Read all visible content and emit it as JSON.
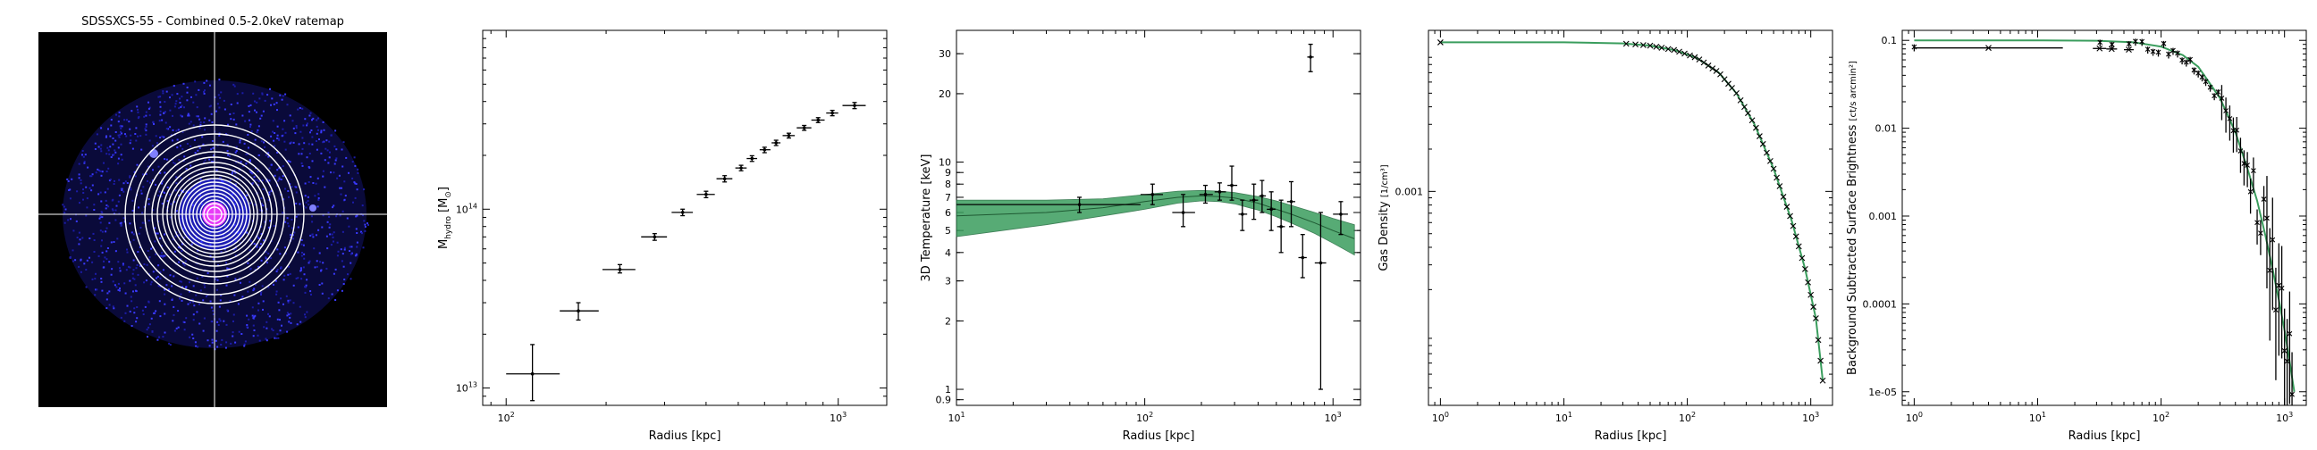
{
  "chart_data": [
    {
      "type": "image",
      "title": "SDSSXCS-55 - Combined 0.5-2.0keV ratemap"
    },
    {
      "type": "scatter",
      "xlabel": "Radius [kpc]",
      "ylabel": "M_hydro [M_⊙]",
      "ylabel_main": "M",
      "ylabel_sub": "hydro",
      "ylabel_tail": " [M",
      "ylabel_sun": "⊙",
      "ylabel_end": "]",
      "xscale": "log",
      "yscale": "log",
      "xlim": [
        85,
        1400
      ],
      "ylim": [
        8000000000000.0,
        1000000000000000.0
      ],
      "xticks": [
        {
          "v": 100,
          "label": "10",
          "sup": "2"
        },
        {
          "v": 1000,
          "label": "10",
          "sup": "3"
        }
      ],
      "yticks": [
        {
          "v": 10000000000000.0,
          "label": "10",
          "sup": "13"
        },
        {
          "v": 100000000000000.0,
          "label": "10",
          "sup": "14"
        }
      ],
      "points": [
        {
          "x": 120,
          "y": 12000000000000.0,
          "xerr": [
            100,
            145
          ],
          "yerr": [
            8500000000000.0,
            17500000000000.0
          ]
        },
        {
          "x": 165,
          "y": 27000000000000.0,
          "xerr": [
            145,
            190
          ],
          "yerr": [
            24000000000000.0,
            30000000000000.0
          ]
        },
        {
          "x": 220,
          "y": 46000000000000.0,
          "xerr": [
            195,
            245
          ],
          "yerr": [
            44000000000000.0,
            49000000000000.0
          ]
        },
        {
          "x": 280,
          "y": 70000000000000.0,
          "xerr": [
            255,
            305
          ],
          "yerr": [
            67000000000000.0,
            73000000000000.0
          ]
        },
        {
          "x": 340,
          "y": 96000000000000.0,
          "xerr": [
            315,
            365
          ],
          "yerr": [
            92000000000000.0,
            100000000000000.0
          ]
        },
        {
          "x": 400,
          "y": 121000000000000.0,
          "xerr": [
            375,
            425
          ],
          "yerr": [
            116000000000000.0,
            126000000000000.0
          ]
        },
        {
          "x": 455,
          "y": 148000000000000.0,
          "xerr": [
            430,
            480
          ],
          "yerr": [
            142000000000000.0,
            154000000000000.0
          ]
        },
        {
          "x": 510,
          "y": 170000000000000.0,
          "xerr": [
            490,
            530
          ],
          "yerr": [
            164000000000000.0,
            176000000000000.0
          ]
        },
        {
          "x": 550,
          "y": 192000000000000.0,
          "xerr": [
            530,
            570
          ],
          "yerr": [
            185000000000000.0,
            199000000000000.0
          ]
        },
        {
          "x": 600,
          "y": 215000000000000.0,
          "xerr": [
            580,
            625
          ],
          "yerr": [
            207000000000000.0,
            222000000000000.0
          ]
        },
        {
          "x": 650,
          "y": 235000000000000.0,
          "xerr": [
            630,
            670
          ],
          "yerr": [
            227000000000000.0,
            243000000000000.0
          ]
        },
        {
          "x": 710,
          "y": 258000000000000.0,
          "xerr": [
            680,
            740
          ],
          "yerr": [
            250000000000000.0,
            266000000000000.0
          ]
        },
        {
          "x": 790,
          "y": 285000000000000.0,
          "xerr": [
            750,
            830
          ],
          "yerr": [
            276000000000000.0,
            294000000000000.0
          ]
        },
        {
          "x": 870,
          "y": 315000000000000.0,
          "xerr": [
            830,
            910
          ],
          "yerr": [
            305000000000000.0,
            325000000000000.0
          ]
        },
        {
          "x": 960,
          "y": 345000000000000.0,
          "xerr": [
            920,
            1000
          ],
          "yerr": [
            333000000000000.0,
            357000000000000.0
          ]
        },
        {
          "x": 1120,
          "y": 380000000000000.0,
          "xerr": [
            1030,
            1210
          ],
          "yerr": [
            365000000000000.0,
            395000000000000.0
          ]
        }
      ]
    },
    {
      "type": "scatter",
      "xlabel": "Radius [kpc]",
      "ylabel": "3D Temperature [keV]",
      "xscale": "log",
      "yscale": "log",
      "xlim": [
        10,
        1400
      ],
      "ylim": [
        0.85,
        38
      ],
      "xticks": [
        {
          "v": 10,
          "label": "10",
          "sup": "1"
        },
        {
          "v": 100,
          "label": "10",
          "sup": "2"
        },
        {
          "v": 1000,
          "label": "10",
          "sup": "3"
        }
      ],
      "yticks": [
        {
          "v": 0.9,
          "label": "0.9"
        },
        {
          "v": 1,
          "label": "1"
        },
        {
          "v": 2,
          "label": "2"
        },
        {
          "v": 3,
          "label": "3"
        },
        {
          "v": 4,
          "label": "4"
        },
        {
          "v": 5,
          "label": "5"
        },
        {
          "v": 6,
          "label": "6"
        },
        {
          "v": 7,
          "label": "7"
        },
        {
          "v": 8,
          "label": "8"
        },
        {
          "v": 9,
          "label": "9"
        },
        {
          "v": 10,
          "label": "10"
        },
        {
          "v": 20,
          "label": "20"
        },
        {
          "v": 30,
          "label": "30"
        }
      ],
      "band_color": "#3a9d5d",
      "model_x": [
        10,
        30,
        60,
        100,
        150,
        200,
        250,
        300,
        400,
        500,
        600,
        800,
        1000,
        1300
      ],
      "model_mid": [
        5.8,
        6.0,
        6.3,
        6.7,
        7.0,
        7.1,
        7.05,
        6.95,
        6.6,
        6.2,
        5.9,
        5.4,
        5.0,
        4.6
      ],
      "model_lo": [
        4.7,
        5.3,
        5.8,
        6.2,
        6.6,
        6.75,
        6.7,
        6.55,
        6.15,
        5.75,
        5.4,
        4.85,
        4.4,
        3.9
      ],
      "model_hi": [
        6.8,
        6.8,
        6.9,
        7.2,
        7.45,
        7.5,
        7.45,
        7.35,
        7.05,
        6.75,
        6.45,
        6.0,
        5.65,
        5.3
      ],
      "points": [
        {
          "x": 45,
          "y": 6.5,
          "xerr": [
            10,
            95
          ],
          "yerr": [
            6.0,
            7.0
          ]
        },
        {
          "x": 110,
          "y": 7.2,
          "xerr": [
            95,
            125
          ],
          "yerr": [
            6.5,
            8.0
          ]
        },
        {
          "x": 160,
          "y": 6.0,
          "xerr": [
            140,
            185
          ],
          "yerr": [
            5.2,
            7.2
          ]
        },
        {
          "x": 210,
          "y": 7.2,
          "xerr": [
            195,
            230
          ],
          "yerr": [
            6.6,
            7.9
          ]
        },
        {
          "x": 250,
          "y": 7.4,
          "xerr": [
            235,
            270
          ],
          "yerr": [
            6.8,
            8.1
          ]
        },
        {
          "x": 290,
          "y": 7.9,
          "xerr": [
            275,
            310
          ],
          "yerr": [
            6.8,
            9.6
          ]
        },
        {
          "x": 330,
          "y": 5.9,
          "xerr": [
            315,
            350
          ],
          "yerr": [
            5.0,
            6.8
          ]
        },
        {
          "x": 380,
          "y": 6.8,
          "xerr": [
            360,
            400
          ],
          "yerr": [
            5.6,
            8.0
          ]
        },
        {
          "x": 420,
          "y": 7.1,
          "xerr": [
            405,
            440
          ],
          "yerr": [
            6.0,
            8.3
          ]
        },
        {
          "x": 470,
          "y": 6.2,
          "xerr": [
            445,
            495
          ],
          "yerr": [
            5.0,
            7.4
          ]
        },
        {
          "x": 530,
          "y": 5.2,
          "xerr": [
            505,
            555
          ],
          "yerr": [
            4.0,
            6.8
          ]
        },
        {
          "x": 600,
          "y": 6.7,
          "xerr": [
            570,
            630
          ],
          "yerr": [
            5.2,
            8.2
          ]
        },
        {
          "x": 690,
          "y": 3.8,
          "xerr": [
            655,
            725
          ],
          "yerr": [
            3.1,
            4.8
          ]
        },
        {
          "x": 760,
          "y": 29,
          "xerr": [
            730,
            790
          ],
          "yerr": [
            25,
            33
          ]
        },
        {
          "x": 860,
          "y": 3.6,
          "xerr": [
            800,
            920
          ],
          "yerr": [
            1.0,
            6.0
          ]
        },
        {
          "x": 1100,
          "y": 5.9,
          "xerr": [
            1000,
            1200
          ],
          "yerr": [
            4.8,
            6.7
          ]
        }
      ]
    },
    {
      "type": "line",
      "xlabel": "Radius [kpc]",
      "ylabel": "Gas Density [1/cm³]",
      "ylabel_main": "Gas Density ",
      "frac_num": "1",
      "frac_den": "cm³",
      "xscale": "log",
      "yscale": "log",
      "xlim": [
        0.8,
        1500
      ],
      "ylim": [
        3e-05,
        0.014
      ],
      "xticks": [
        {
          "v": 1,
          "label": "10",
          "sup": "0"
        },
        {
          "v": 10,
          "label": "10",
          "sup": "1"
        },
        {
          "v": 100,
          "label": "10",
          "sup": "2"
        },
        {
          "v": 1000,
          "label": "10",
          "sup": "3"
        }
      ],
      "yticks": [
        {
          "v": 0.001,
          "label": "0.001"
        }
      ],
      "line_color": "#3a9d5d",
      "model_x": [
        1,
        10,
        30,
        50,
        80,
        120,
        180,
        250,
        350,
        500,
        700,
        900,
        1100,
        1250
      ],
      "model_y": [
        0.0115,
        0.0115,
        0.0113,
        0.0109,
        0.0101,
        0.0089,
        0.007,
        0.005,
        0.003,
        0.00145,
        0.00062,
        0.00028,
        0.000125,
        4.5e-05
      ],
      "marker_x": [
        1,
        32,
        38,
        44,
        50,
        56,
        62,
        70,
        78,
        86,
        95,
        105,
        115,
        125,
        136,
        148,
        160,
        172,
        185,
        200,
        215,
        230,
        250,
        270,
        290,
        310,
        335,
        360,
        385,
        410,
        440,
        470,
        500,
        530,
        560,
        600,
        640,
        680,
        720,
        760,
        800,
        850,
        900,
        950,
        1000,
        1050,
        1100,
        1150,
        1200,
        1250
      ]
    },
    {
      "type": "scatter",
      "xlabel": "Radius [kpc]",
      "ylabel": "Background Subtracted Surface Brightness [ct/(s arcmin²)]",
      "ylabel_main": "Background Subtracted Surface Brightness ",
      "frac_num": "ct",
      "frac_den": "s arcmin²",
      "xscale": "log",
      "yscale": "log",
      "xlim": [
        0.8,
        1500
      ],
      "ylim": [
        7e-06,
        0.13
      ],
      "xticks": [
        {
          "v": 1,
          "label": "10",
          "sup": "0"
        },
        {
          "v": 10,
          "label": "10",
          "sup": "1"
        },
        {
          "v": 100,
          "label": "10",
          "sup": "2"
        },
        {
          "v": 1000,
          "label": "10",
          "sup": "3"
        }
      ],
      "yticks": [
        {
          "v": 1e-05,
          "label": "1e-05"
        },
        {
          "v": 0.0001,
          "label": "0.0001"
        },
        {
          "v": 0.001,
          "label": "0.001"
        },
        {
          "v": 0.01,
          "label": "0.01"
        },
        {
          "v": 0.1,
          "label": "0.1"
        }
      ],
      "line_color": "#3a9d5d",
      "model_x": [
        1,
        10,
        30,
        60,
        100,
        150,
        200,
        300,
        400,
        500,
        600,
        700,
        800,
        900,
        1000,
        1100,
        1200
      ],
      "model_y": [
        0.1,
        0.1,
        0.099,
        0.095,
        0.085,
        0.068,
        0.05,
        0.022,
        0.009,
        0.0035,
        0.0015,
        0.0006,
        0.00025,
        0.00011,
        5e-05,
        2.2e-05,
        1e-05
      ],
      "points_x": [
        1,
        32,
        40,
        55,
        62,
        70,
        78,
        86,
        95,
        105,
        115,
        125,
        136,
        148,
        160,
        172,
        185,
        200,
        215,
        230,
        250,
        270,
        290,
        310,
        335,
        360,
        385,
        410,
        440,
        470,
        500,
        530,
        560,
        600,
        640,
        680,
        720,
        760,
        800,
        850,
        900,
        950,
        1000,
        1050,
        1100,
        1150
      ],
      "points_xerr": [
        [
          1,
          16
        ],
        [
          28,
          36
        ],
        [
          36,
          44
        ],
        [
          50,
          60
        ]
      ]
    }
  ]
}
